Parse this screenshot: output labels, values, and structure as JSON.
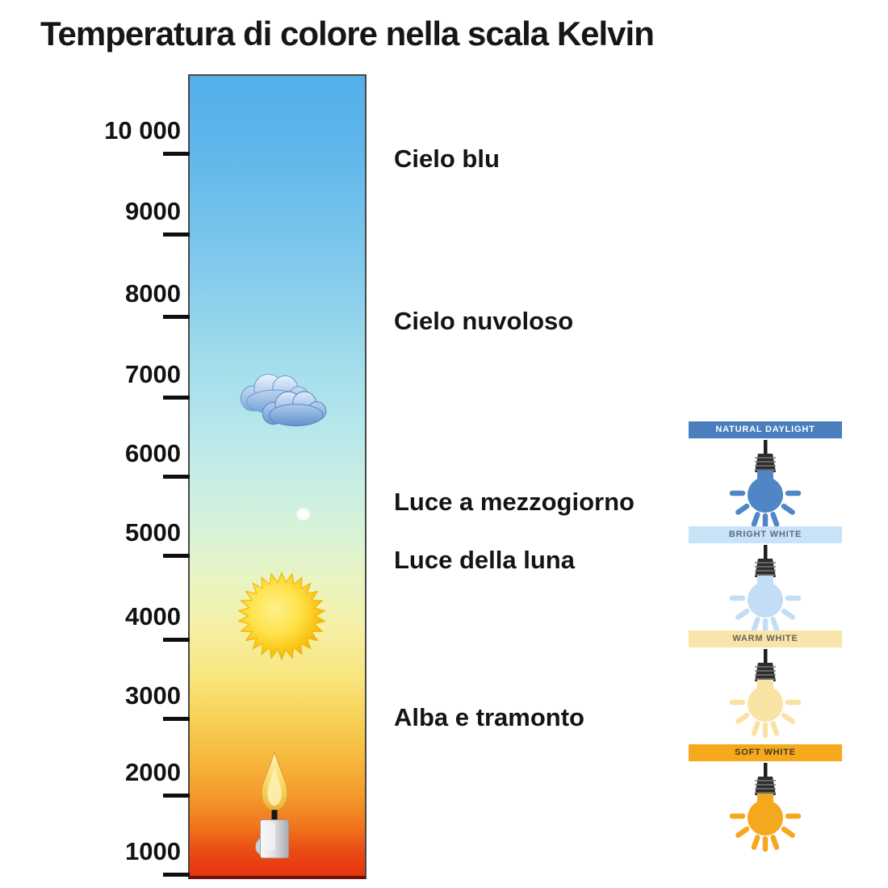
{
  "title": "Temperatura di colore nella scala Kelvin",
  "chart_data": {
    "type": "heatmap",
    "subtype": "vertical-color-temperature-scale",
    "title": "Temperatura di colore nella scala Kelvin",
    "axis_unit": "Kelvin",
    "axis_range": [
      1000,
      10000
    ],
    "tick_labels": [
      "10 000",
      "9000",
      "8000",
      "7000",
      "6000",
      "5000",
      "4000",
      "3000",
      "2000",
      "1000"
    ],
    "tick_values": [
      10000,
      9000,
      8000,
      7000,
      6000,
      5000,
      4000,
      3000,
      2000,
      1000
    ],
    "gradient_stops": [
      [
        0,
        "#54afe9"
      ],
      [
        8,
        "#5db5ea"
      ],
      [
        18,
        "#73c2ec"
      ],
      [
        28,
        "#8cd0ec"
      ],
      [
        36,
        "#a3ddec"
      ],
      [
        44,
        "#b6e7ea"
      ],
      [
        51,
        "#c8eee4"
      ],
      [
        57,
        "#d8f2d7"
      ],
      [
        63,
        "#e9f4c1"
      ],
      [
        69,
        "#f5f0a5"
      ],
      [
        75,
        "#f8e67e"
      ],
      [
        80,
        "#f7d358"
      ],
      [
        85,
        "#f6ba3e"
      ],
      [
        90,
        "#f39a2b"
      ],
      [
        94,
        "#f0731d"
      ],
      [
        97,
        "#eb4a12"
      ],
      [
        100,
        "#e53410"
      ]
    ],
    "annotations": [
      {
        "label": "Cielo blu",
        "kelvin_approx": 10000
      },
      {
        "label": "Cielo nuvoloso",
        "kelvin_approx": 8000
      },
      {
        "label": "Luce a mezzogiorno",
        "kelvin_approx": 5700
      },
      {
        "label": "Luce della luna",
        "kelvin_approx": 5000
      },
      {
        "label": "Alba e tramonto",
        "kelvin_approx": 3000
      }
    ],
    "icons": [
      {
        "name": "cloud-icon",
        "kelvin_approx": 6800
      },
      {
        "name": "moon-icon",
        "kelvin_approx": 5600
      },
      {
        "name": "sun-icon",
        "kelvin_approx": 4300
      },
      {
        "name": "candle-icon",
        "kelvin_approx": 1500
      }
    ]
  },
  "bulbs": [
    {
      "label": "NATURAL DAYLIGHT",
      "banner_color": "#4a7ebd",
      "text_color": "#ffffff",
      "bulb_color": "#4f86c6"
    },
    {
      "label": "BRIGHT WHITE",
      "banner_color": "#c8e2f8",
      "text_color": "#5b6d7e",
      "bulb_color": "#c3ddf6"
    },
    {
      "label": "WARM WHITE",
      "banner_color": "#f8e5ab",
      "text_color": "#6b6353",
      "bulb_color": "#f9e3a4"
    },
    {
      "label": "SOFT WHITE",
      "banner_color": "#f6a91d",
      "text_color": "#3f3a28",
      "bulb_color": "#f5a81e"
    }
  ]
}
